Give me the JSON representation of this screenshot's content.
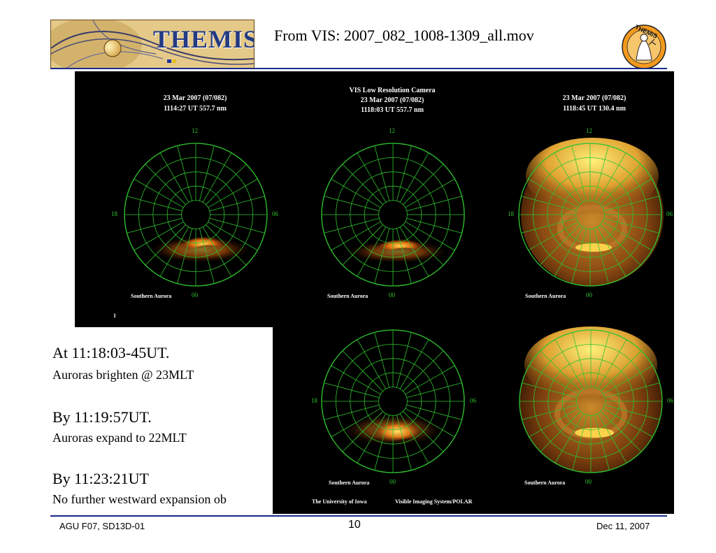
{
  "header": {
    "logo_text": "THEMIS",
    "title": "From VIS: 2007_082_1008-1309_all.mov",
    "badge_text": "THEMIS"
  },
  "images": {
    "p1": {
      "line1": "23 Mar 2007 (07/082)",
      "line2": "1114:27 UT    557.7 nm",
      "n12": "12",
      "n18": "18",
      "n06": "06",
      "n00": "00",
      "southern": "Southern Aurora",
      "corner": "1"
    },
    "p2": {
      "line0": "VIS Low Resolution Camera",
      "line1": "23 Mar 2007 (07/082)",
      "line2": "1118:03 UT    557.7 nm",
      "n12": "12",
      "n00": "00",
      "southern": "Southern Aurora"
    },
    "p3": {
      "line1": "23 Mar 2007 (07/082)",
      "line2": "1118:45 UT    130.4 nm",
      "n12": "12",
      "n18": "18",
      "n06": "06",
      "n00": "00",
      "southern": "Southern Aurora"
    },
    "p4": {
      "n18": "18",
      "n06": "06",
      "n00": "00",
      "southern": "Southern Aurora",
      "footer_left": "The University of Iowa",
      "footer_right": "Visible Imaging System/POLAR"
    },
    "p5": {
      "n06": "06",
      "n00": "00",
      "southern": "Southern Aurora"
    }
  },
  "body": {
    "h1": "At 11:18:03-45UT.",
    "s1": "Auroras brighten @ 23MLT",
    "h2": "By 11:19:57UT.",
    "s2": "Auroras expand to 22MLT",
    "h3": "By 11:23:21UT",
    "s3": "No further westward expansion ob"
  },
  "footer": {
    "left": "AGU F07, SD13D-01",
    "page": "10",
    "date": "Dec 11, 2007"
  },
  "colors": {
    "rule": "#1a2a8c",
    "grid": "#2ec32e",
    "logo_text": "#243a82"
  }
}
